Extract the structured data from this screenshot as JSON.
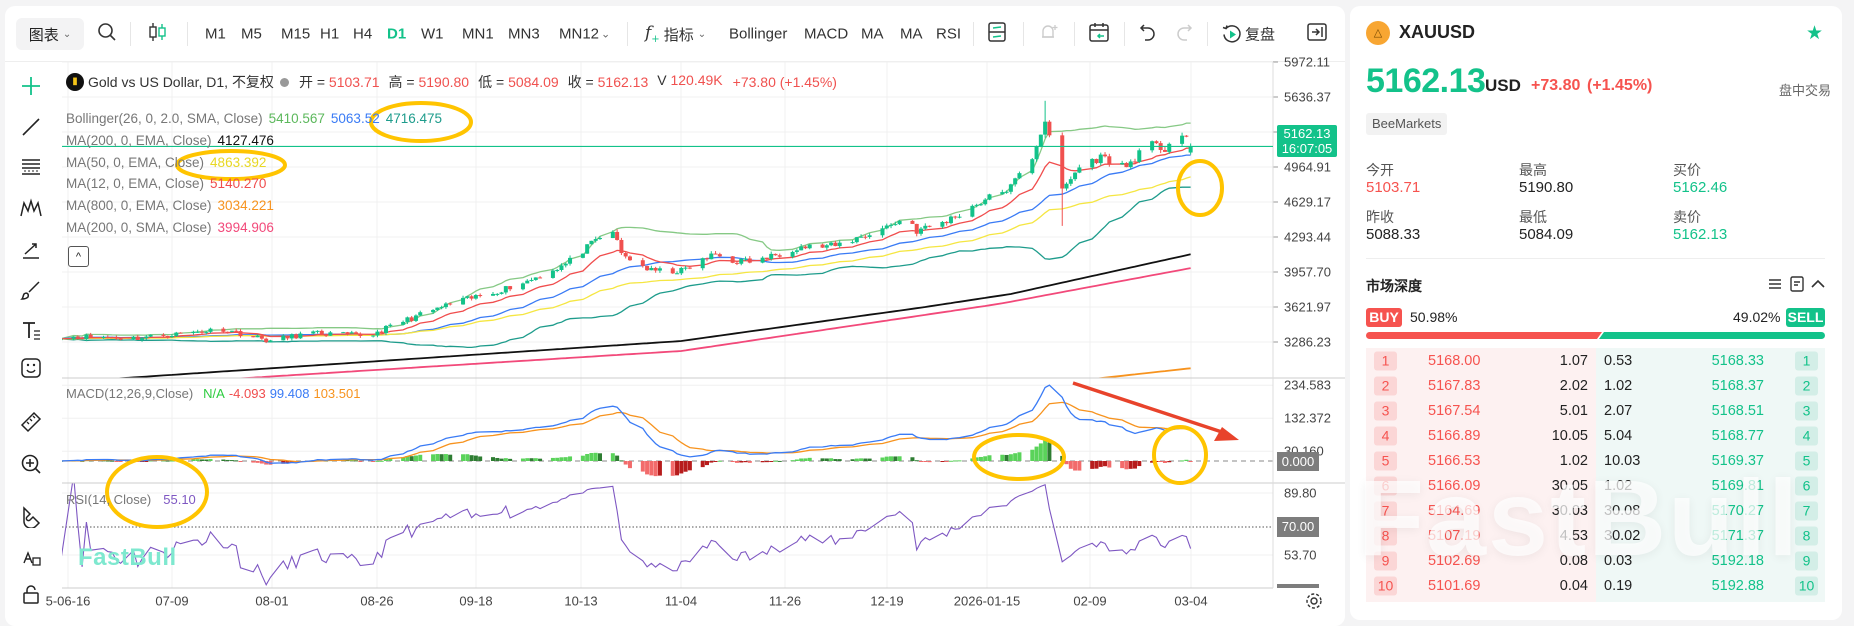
{
  "toolbar": {
    "chart_menu": "图表",
    "timeframes": [
      {
        "label": "M1",
        "active": false
      },
      {
        "label": "M5",
        "active": false
      },
      {
        "label": "M15",
        "active": false
      },
      {
        "label": "H1",
        "active": false
      },
      {
        "label": "H4",
        "active": false
      },
      {
        "label": "D1",
        "active": true
      },
      {
        "label": "W1",
        "active": false
      },
      {
        "label": "MN1",
        "active": false
      },
      {
        "label": "MN3",
        "active": false
      },
      {
        "label": "MN12",
        "active": false
      }
    ],
    "indicators_label": "指标",
    "quick_indicators": [
      "Bollinger",
      "MACD",
      "MA",
      "MA",
      "RSI"
    ],
    "replay_label": "复盘",
    "icons": [
      "search-icon",
      "candlestick-icon",
      "chevron-down-icon",
      "function-icon",
      "layout-icon",
      "alert-bell-icon",
      "calendar-icon",
      "undo-icon",
      "redo-icon",
      "replay-icon",
      "collapse-panel-icon"
    ]
  },
  "drawing_tools": [
    "crosshair-plus-icon",
    "trend-line-icon",
    "fib-lines-icon",
    "pattern-icon",
    "arrow-line-icon",
    "brush-icon",
    "text-icon",
    "emoji-icon",
    "ruler-icon",
    "zoom-in-icon",
    "magnet-icon",
    "lock-draw-icon",
    "lock-icon"
  ],
  "chart": {
    "title": "Gold vs US Dollar, D1, 不复权",
    "ohlc": [
      {
        "label": "开 =",
        "value": "5103.71"
      },
      {
        "label": "高 =",
        "value": "5190.80"
      },
      {
        "label": "低 =",
        "value": "5084.09"
      },
      {
        "label": "收 =",
        "value": "5162.13"
      },
      {
        "label": "V",
        "value": "120.49K"
      }
    ],
    "change": "+73.80 (+1.45%)",
    "indicators": [
      {
        "label": "Bollinger(26, 0, 2.0, SMA, Close)",
        "values": [
          {
            "v": "5410.567",
            "color": "#5cb85c"
          },
          {
            "v": "5063.52",
            "color": "#3a7bf5"
          },
          {
            "v": "4716.475",
            "color": "#1e9c8c"
          }
        ]
      },
      {
        "label": "MA(200, 0, EMA, Close)",
        "values": [
          {
            "v": "4127.476",
            "color": "#111111"
          }
        ]
      },
      {
        "label": "MA(50, 0, EMA, Close)",
        "values": [
          {
            "v": "4863.392",
            "color": "#e8d824"
          }
        ]
      },
      {
        "label": "MA(12, 0, EMA, Close)",
        "values": [
          {
            "v": "5140.270",
            "color": "#f04d4d"
          }
        ]
      },
      {
        "label": "MA(800, 0, EMA, Close)",
        "values": [
          {
            "v": "3034.221",
            "color": "#f7931e"
          }
        ]
      },
      {
        "label": "MA(200, 0, SMA, Close)",
        "values": [
          {
            "v": "3994.906",
            "color": "#f2497a"
          }
        ]
      }
    ],
    "collapse_label": "^",
    "price_axis": [
      "5972.11",
      "5636.37",
      "5300.64",
      "4964.91",
      "4629.17",
      "4293.44",
      "3957.70",
      "3621.97",
      "3286.23"
    ],
    "last_price_label": "5162.13",
    "countdown": "16:07:05",
    "macd": {
      "label": "MACD(12,26,9,Close)",
      "values": [
        {
          "v": "N/A",
          "color": "#2ecc40"
        },
        {
          "v": "-4.093",
          "color": "#f04d4d"
        },
        {
          "v": "99.408",
          "color": "#3a7bf5"
        },
        {
          "v": "103.501",
          "color": "#f7931e"
        }
      ],
      "axis": [
        "234.583",
        "132.372",
        "30.160"
      ],
      "zero_label": "0.000"
    },
    "rsi": {
      "label": "RSI(14, Close)",
      "value": "55.10",
      "value_color": "#7e57c2",
      "axis": [
        "89.80",
        "53.70"
      ],
      "level_label": "70.00"
    },
    "date_axis": [
      "5-06-16",
      "07-09",
      "08-01",
      "08-26",
      "09-18",
      "10-13",
      "11-04",
      "11-26",
      "12-19",
      "2026-01-15",
      "02-09",
      "03-04"
    ],
    "watermark": "FastBull"
  },
  "chart_data": {
    "type": "candlestick",
    "symbol": "XAUUSD",
    "timeframe": "D1",
    "close_anchors": [
      [
        "2025-06-13",
        3344
      ],
      [
        "2025-07-01",
        3325
      ],
      [
        "2025-07-21",
        3411
      ],
      [
        "2025-08-01",
        3296
      ],
      [
        "2025-08-10",
        3373
      ],
      [
        "2025-08-24",
        3344
      ],
      [
        "2025-09-01",
        3487
      ],
      [
        "2025-09-12",
        3650
      ],
      [
        "2025-09-23",
        3775
      ],
      [
        "2025-09-30",
        3871
      ],
      [
        "2025-10-09",
        4034
      ],
      [
        "2025-10-16",
        4255
      ],
      [
        "2025-10-20",
        4351
      ],
      [
        "2025-10-22",
        4130
      ],
      [
        "2025-10-29",
        3967
      ],
      [
        "2025-11-05",
        3967
      ],
      [
        "2025-11-13",
        4130
      ],
      [
        "2025-11-16",
        4063
      ],
      [
        "2025-11-23",
        4063
      ],
      [
        "2025-12-02",
        4197
      ],
      [
        "2025-12-11",
        4207
      ],
      [
        "2025-12-20",
        4341
      ],
      [
        "2025-12-28",
        4485
      ],
      [
        "2025-12-30",
        4351
      ],
      [
        "2026-01-06",
        4447
      ],
      [
        "2026-01-13",
        4610
      ],
      [
        "2026-01-21",
        4773
      ],
      [
        "2026-01-26",
        5061
      ],
      [
        "2026-01-29",
        5416
      ],
      [
        "2026-02-01",
        4869
      ],
      [
        "2026-02-02",
        4744
      ],
      [
        "2026-02-06",
        4965
      ],
      [
        "2026-02-11",
        5061
      ],
      [
        "2026-02-17",
        4965
      ],
      [
        "2026-02-22",
        5185
      ],
      [
        "2026-02-26",
        5137
      ],
      [
        "2026-03-01",
        5320
      ],
      [
        "2026-03-04",
        5162.13
      ]
    ],
    "notable_wicks": [
      {
        "date": "2026-01-29",
        "high": 5600
      },
      {
        "date": "2026-02-02",
        "low": 4400
      }
    ],
    "last_ohlc": {
      "open": 5103.71,
      "high": 5190.8,
      "low": 5084.09,
      "close": 5162.13
    },
    "ma200_ema_anchors": [
      [
        "2025-06-13",
        2900
      ],
      [
        "2025-11-05",
        3296
      ],
      [
        "2026-01-01",
        3622
      ],
      [
        "2026-01-21",
        3747
      ],
      [
        "2026-03-04",
        4127.476
      ]
    ],
    "ma200_sma_anchors": [
      [
        "2025-06-13",
        2830
      ],
      [
        "2025-11-05",
        3200
      ],
      [
        "2026-01-18",
        3650
      ],
      [
        "2026-03-04",
        3994.906
      ]
    ],
    "ma800_ema_anchors": [
      [
        "2026-02-09",
        2931
      ],
      [
        "2026-03-04",
        3034.221
      ]
    ],
    "ylim": [
      2931,
      5972.11
    ],
    "rsi_level": 70
  },
  "panel": {
    "symbol": "XAUUSD",
    "price": "5162.13",
    "currency": "USD",
    "change": "+73.80",
    "change_pct": "(+1.45%)",
    "session": "盘中交易",
    "broker": "BeeMarkets",
    "stats": [
      {
        "label": "今开",
        "value": "5103.71",
        "color": "#f6534f"
      },
      {
        "label": "最高",
        "value": "5190.80",
        "color": "#222222"
      },
      {
        "label": "买价",
        "value": "5162.46",
        "color": "#13c28a"
      },
      {
        "label": "昨收",
        "value": "5088.33",
        "color": "#222222"
      },
      {
        "label": "最低",
        "value": "5084.09",
        "color": "#222222"
      },
      {
        "label": "卖价",
        "value": "5162.13",
        "color": "#13c28a"
      }
    ],
    "depth_title": "市场深度",
    "buy_label": "BUY",
    "buy_pct": "50.98%",
    "sell_pct": "49.02%",
    "sell_label": "SELL",
    "buy_ratio": 50.98,
    "bids": [
      {
        "n": "1",
        "price": "5168.00",
        "qty": "1.07"
      },
      {
        "n": "2",
        "price": "5167.83",
        "qty": "2.02"
      },
      {
        "n": "3",
        "price": "5167.54",
        "qty": "5.01"
      },
      {
        "n": "4",
        "price": "5166.89",
        "qty": "10.05"
      },
      {
        "n": "5",
        "price": "5166.53",
        "qty": "1.02"
      },
      {
        "n": "6",
        "price": "5166.09",
        "qty": "30.05"
      },
      {
        "n": "7",
        "price": "5164.69",
        "qty": "30.03"
      },
      {
        "n": "8",
        "price": "5107.19",
        "qty": "4.53"
      },
      {
        "n": "9",
        "price": "5102.69",
        "qty": "0.08"
      },
      {
        "n": "10",
        "price": "5101.69",
        "qty": "0.04"
      }
    ],
    "asks": [
      {
        "n": "1",
        "price": "5168.33",
        "qty": "0.53"
      },
      {
        "n": "2",
        "price": "5168.37",
        "qty": "1.02"
      },
      {
        "n": "3",
        "price": "5168.51",
        "qty": "2.07"
      },
      {
        "n": "4",
        "price": "5168.77",
        "qty": "5.04"
      },
      {
        "n": "5",
        "price": "5169.37",
        "qty": "10.03"
      },
      {
        "n": "6",
        "price": "5169.81",
        "qty": "1.02"
      },
      {
        "n": "7",
        "price": "5170.27",
        "qty": "30.08"
      },
      {
        "n": "8",
        "price": "5171.37",
        "qty": "30.02"
      },
      {
        "n": "9",
        "price": "5192.18",
        "qty": "0.03"
      },
      {
        "n": "10",
        "price": "5192.88",
        "qty": "0.19"
      }
    ],
    "watermark": "FastBull"
  },
  "colors": {
    "up": "#13c28a",
    "down": "#f0514f",
    "accent": "#13c28a",
    "annotation": "#ffc400",
    "arrow": "#e8432b"
  }
}
